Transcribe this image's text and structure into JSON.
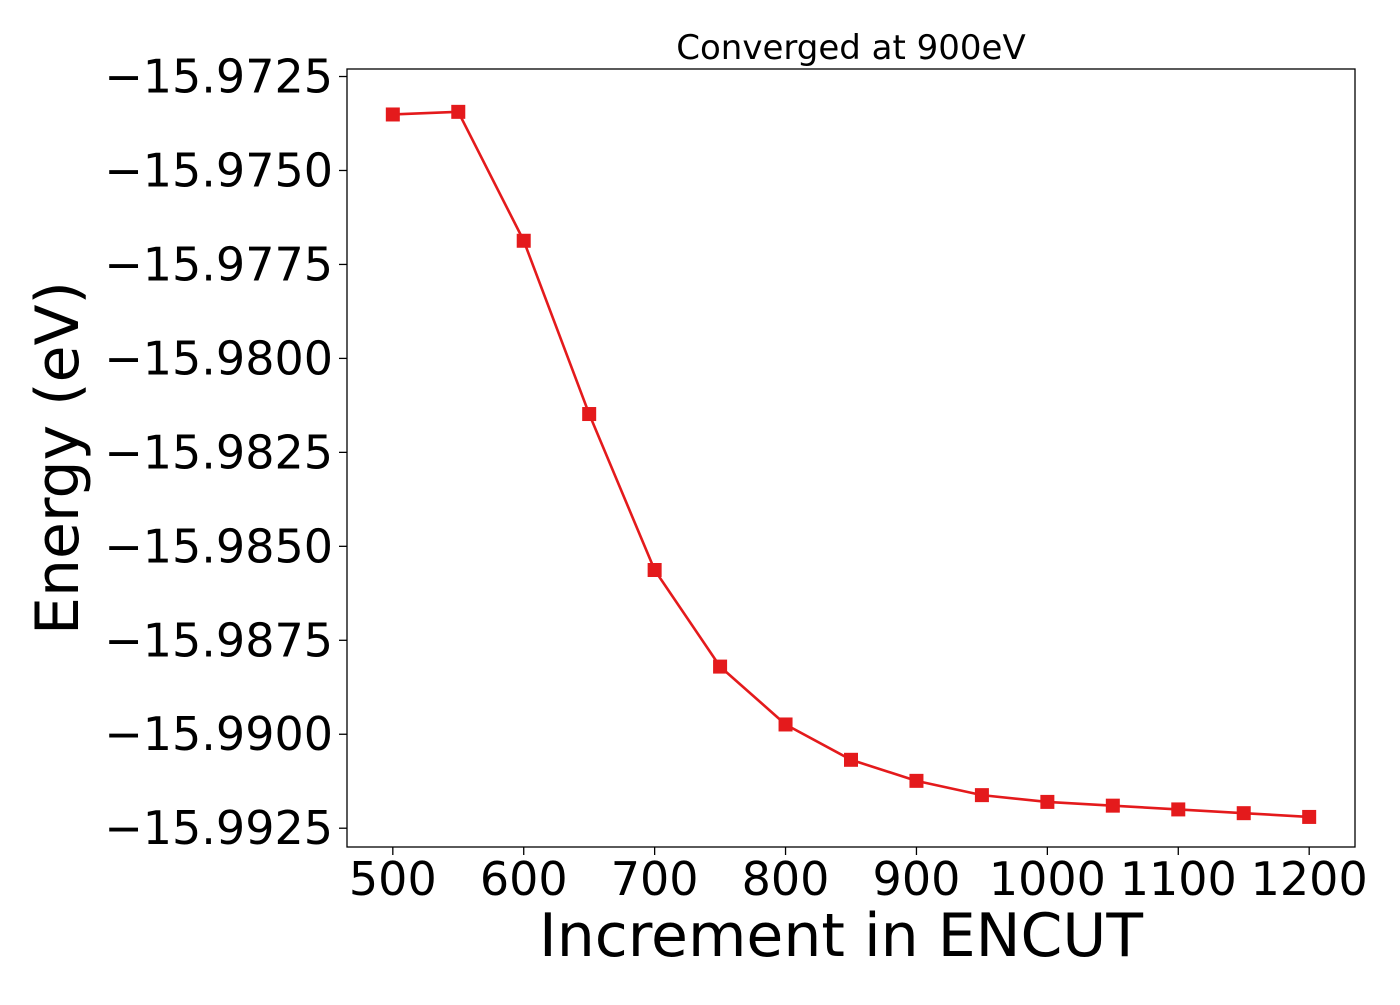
{
  "chart_data": {
    "type": "line",
    "title": "Converged at 900eV",
    "xlabel": "Increment in ENCUT",
    "ylabel": "Energy (eV)",
    "xlim": [
      465,
      1235
    ],
    "ylim": [
      -15.993,
      -15.9723
    ],
    "xticks": [
      500,
      600,
      700,
      800,
      900,
      1000,
      1100,
      1200
    ],
    "yticks": [
      -15.9725,
      -15.975,
      -15.9775,
      -15.98,
      -15.9825,
      -15.985,
      -15.9875,
      -15.99,
      -15.9925
    ],
    "ytick_labels": [
      "−15.9725",
      "−15.9750",
      "−15.9775",
      "−15.9800",
      "−15.9825",
      "−15.9850",
      "−15.9875",
      "−15.9900",
      "−15.9925"
    ],
    "grid": false,
    "series": [
      {
        "color": "#e41a1c",
        "marker": "square",
        "x": [
          500,
          550,
          600,
          650,
          700,
          750,
          800,
          850,
          900,
          950,
          1000,
          1050,
          1100,
          1150,
          1200
        ],
        "y": [
          -15.97351,
          -15.97344,
          -15.97687,
          -15.98148,
          -15.98563,
          -15.9882,
          -15.98974,
          -15.99068,
          -15.99124,
          -15.99162,
          -15.9918,
          -15.9919,
          -15.992,
          -15.9921,
          -15.9922
        ]
      }
    ]
  }
}
